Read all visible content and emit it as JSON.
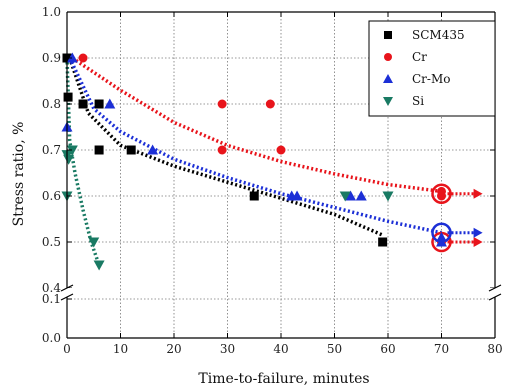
{
  "chart_data": {
    "type": "scatter",
    "xlabel": "Time-to-failure, minutes",
    "ylabel": "Stress ratio, %",
    "xlim": [
      0,
      80
    ],
    "x_ticks": [
      "0",
      "10",
      "20",
      "30",
      "40",
      "50",
      "60",
      "70",
      "80"
    ],
    "y_ticks_upper": [
      "0.4",
      "0.5",
      "0.6",
      "0.7",
      "0.8",
      "0.9",
      "1.0"
    ],
    "y_ticks_lower": [
      "0.0",
      "0.1"
    ],
    "y_axis_break": [
      0.1,
      0.4
    ],
    "grid": true,
    "legend_position": "top-right",
    "series": [
      {
        "name": "SCM435",
        "marker": "square",
        "color": "#000000",
        "points": [
          [
            0,
            0.9
          ],
          [
            0.2,
            0.815
          ],
          [
            3,
            0.8
          ],
          [
            6,
            0.8
          ],
          [
            6,
            0.7
          ],
          [
            12,
            0.7
          ],
          [
            35,
            0.6
          ],
          [
            59,
            0.5
          ]
        ],
        "trend": [
          [
            0.5,
            0.9
          ],
          [
            4,
            0.78
          ],
          [
            10,
            0.71
          ],
          [
            20,
            0.665
          ],
          [
            30,
            0.63
          ],
          [
            40,
            0.595
          ],
          [
            50,
            0.56
          ],
          [
            59,
            0.515
          ]
        ]
      },
      {
        "name": "Cr",
        "marker": "circle",
        "color": "#e8141b",
        "points": [
          [
            3,
            0.9
          ],
          [
            29,
            0.8
          ],
          [
            38,
            0.8
          ],
          [
            29,
            0.7
          ],
          [
            40,
            0.7
          ],
          [
            70,
            0.61
          ],
          [
            70,
            0.6
          ],
          [
            70,
            0.5
          ]
        ],
        "trend": [
          [
            1,
            0.9
          ],
          [
            10,
            0.83
          ],
          [
            20,
            0.76
          ],
          [
            30,
            0.71
          ],
          [
            40,
            0.675
          ],
          [
            50,
            0.648
          ],
          [
            60,
            0.625
          ],
          [
            70,
            0.61
          ]
        ],
        "runouts": [
          [
            70,
            0.605
          ],
          [
            70,
            0.5
          ]
        ]
      },
      {
        "name": "Cr-Mo",
        "marker": "triangle-up",
        "color": "#1c2fd6",
        "points": [
          [
            0,
            0.75
          ],
          [
            1,
            0.9
          ],
          [
            8,
            0.8
          ],
          [
            16,
            0.7
          ],
          [
            42,
            0.6
          ],
          [
            43,
            0.6
          ],
          [
            53,
            0.6
          ],
          [
            55,
            0.6
          ],
          [
            70,
            0.51
          ],
          [
            70,
            0.5
          ]
        ],
        "trend": [
          [
            0.5,
            0.9
          ],
          [
            5,
            0.79
          ],
          [
            10,
            0.74
          ],
          [
            20,
            0.68
          ],
          [
            30,
            0.64
          ],
          [
            40,
            0.605
          ],
          [
            50,
            0.575
          ],
          [
            60,
            0.545
          ],
          [
            70,
            0.52
          ]
        ],
        "runouts": [
          [
            70,
            0.52
          ]
        ]
      },
      {
        "name": "Si",
        "marker": "triangle-down",
        "color": "#197a63",
        "points": [
          [
            0,
            0.69
          ],
          [
            0.3,
            0.68
          ],
          [
            1,
            0.7
          ],
          [
            0,
            0.6
          ],
          [
            5,
            0.5
          ],
          [
            6,
            0.45
          ],
          [
            52,
            0.6
          ],
          [
            60,
            0.6
          ]
        ],
        "trend": [
          [
            0,
            0.9
          ],
          [
            0.5,
            0.72
          ],
          [
            1.5,
            0.65
          ],
          [
            3,
            0.57
          ],
          [
            4.5,
            0.5
          ],
          [
            6,
            0.45
          ]
        ]
      }
    ]
  }
}
